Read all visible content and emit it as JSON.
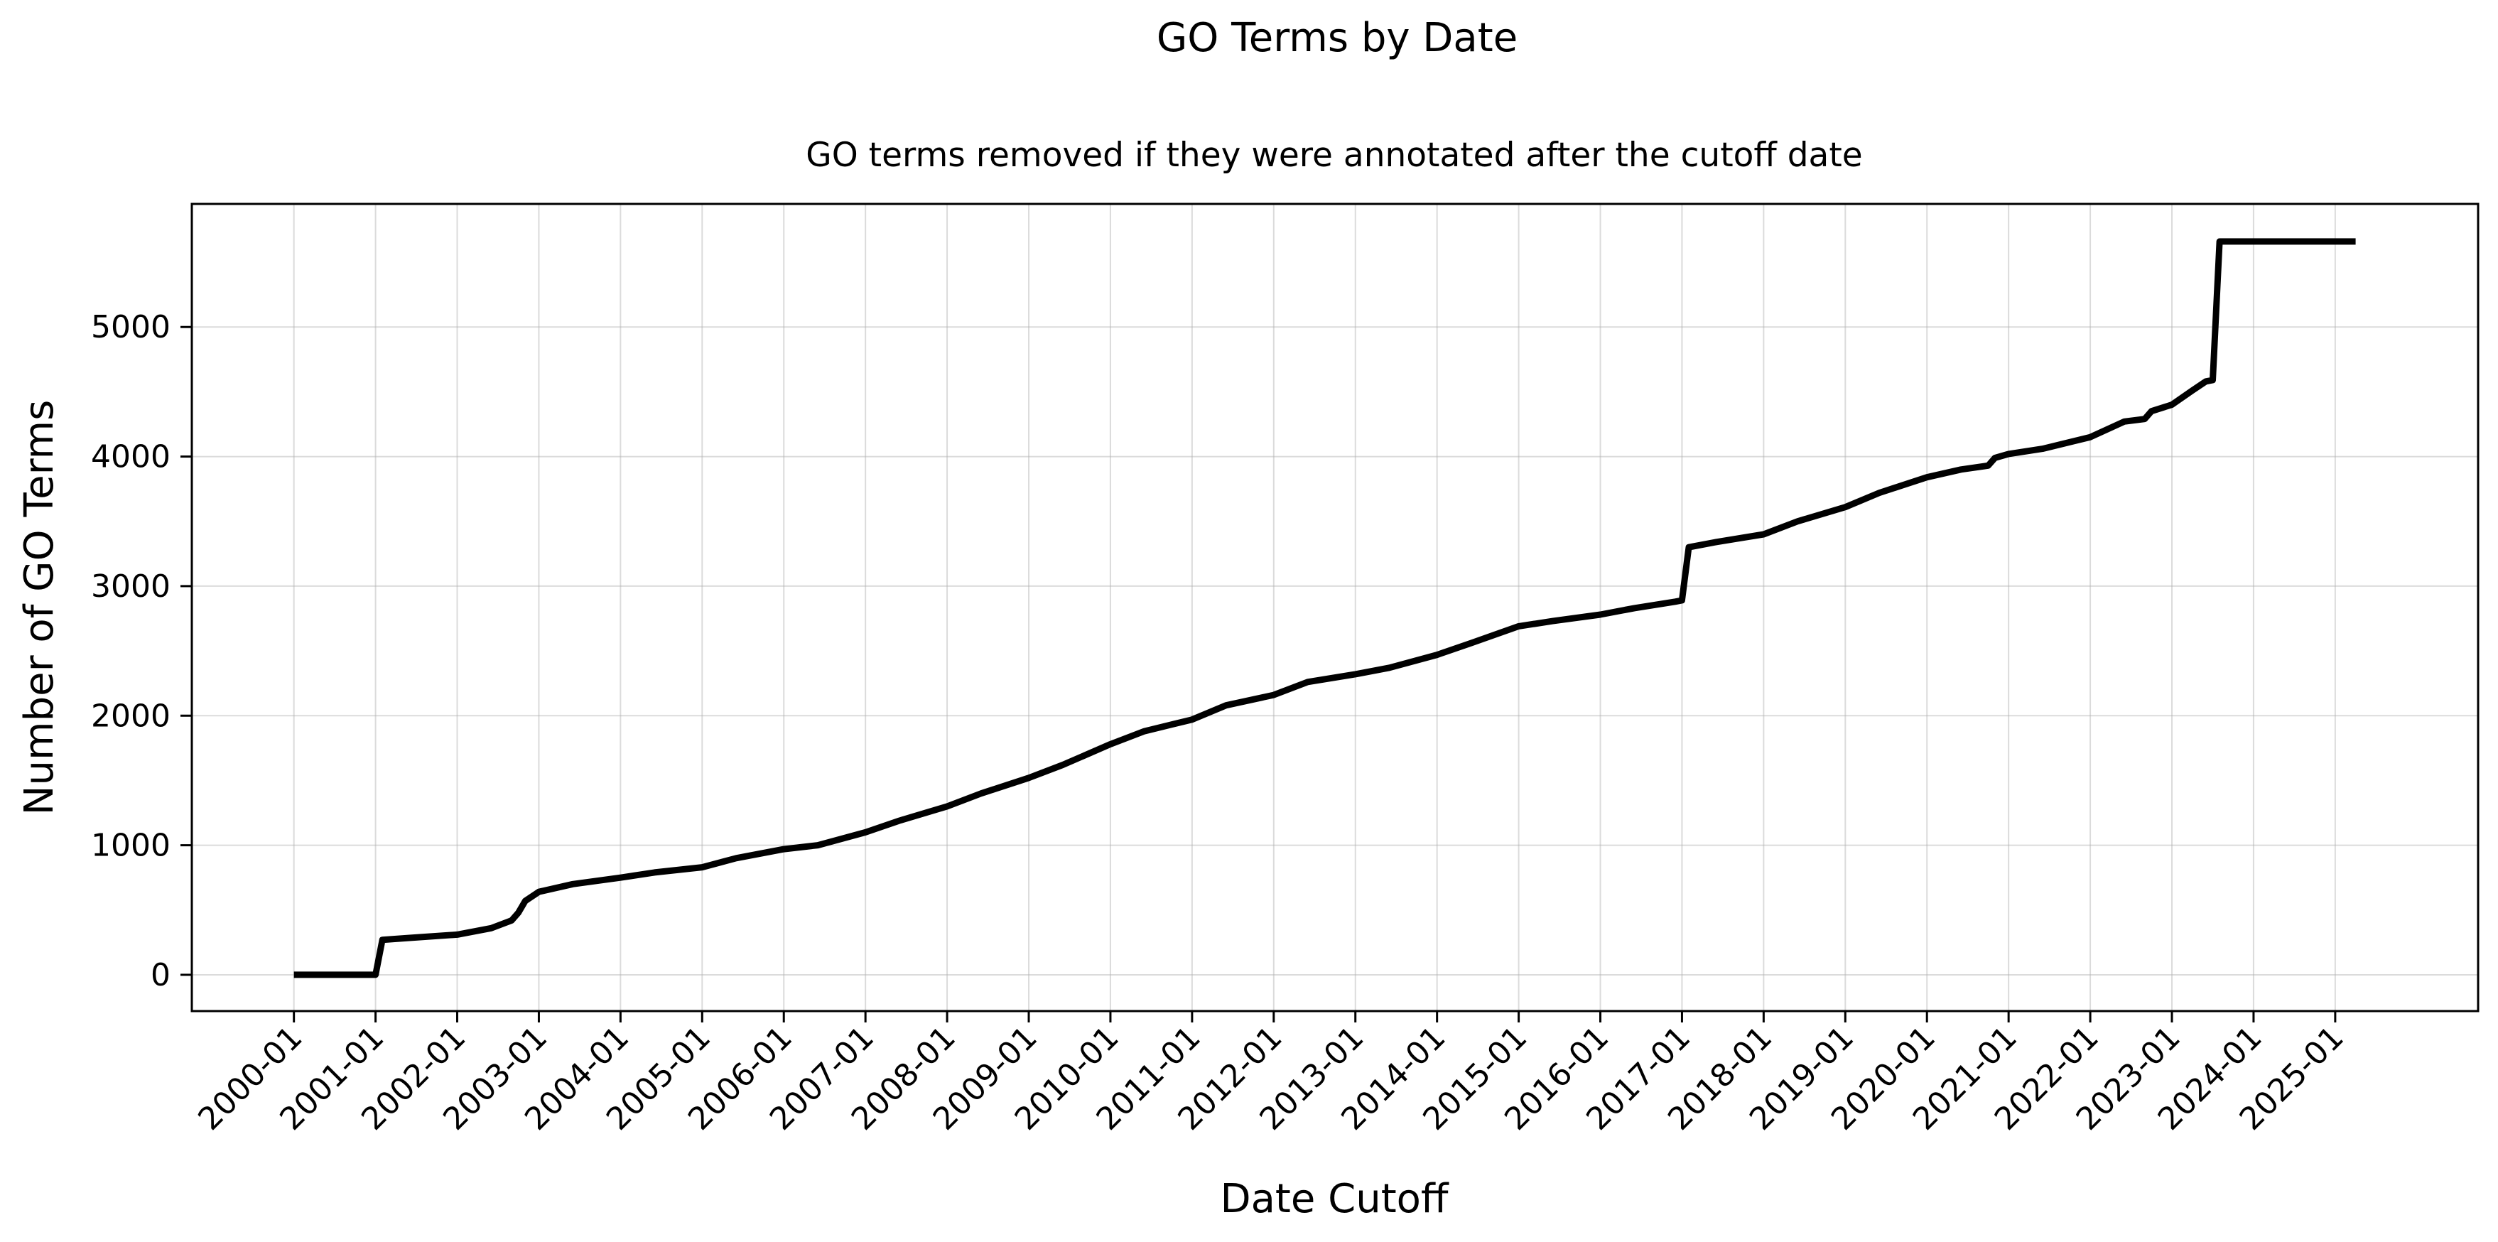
{
  "chart_data": {
    "type": "line",
    "title": "GO Terms by Date",
    "subtitle": "GO terms removed if they were annotated after the cutoff date",
    "xlabel": "Date Cutoff",
    "ylabel": "Number of GO Terms",
    "x_ticks": [
      "2000-01",
      "2001-01",
      "2002-01",
      "2003-01",
      "2004-01",
      "2005-01",
      "2006-01",
      "2007-01",
      "2008-01",
      "2009-01",
      "2010-01",
      "2011-01",
      "2012-01",
      "2013-01",
      "2014-01",
      "2015-01",
      "2016-01",
      "2017-01",
      "2018-01",
      "2019-01",
      "2020-01",
      "2021-01",
      "2022-01",
      "2023-01",
      "2024-01",
      "2025-01"
    ],
    "y_ticks": [
      "0",
      "1000",
      "2000",
      "3000",
      "4000",
      "5000"
    ],
    "xlim": [
      "1998-10",
      "2026-10"
    ],
    "ylim": [
      -280,
      5950
    ],
    "grid": true,
    "legend": "none",
    "color": "#000000",
    "series": [
      {
        "x": [
          "2000-01",
          "2000-07",
          "2001-01",
          "2001-02",
          "2001-06",
          "2002-01",
          "2002-06",
          "2002-09",
          "2002-10",
          "2002-11",
          "2003-01",
          "2003-06",
          "2004-01",
          "2004-06",
          "2005-01",
          "2005-06",
          "2006-01",
          "2006-06",
          "2007-01",
          "2007-06",
          "2008-01",
          "2008-06",
          "2009-01",
          "2009-06",
          "2010-01",
          "2010-06",
          "2011-01",
          "2011-06",
          "2012-01",
          "2012-06",
          "2013-01",
          "2013-06",
          "2014-01",
          "2014-06",
          "2015-01",
          "2015-06",
          "2016-01",
          "2016-06",
          "2016-12",
          "2017-01",
          "2017-02",
          "2017-06",
          "2018-01",
          "2018-06",
          "2019-01",
          "2019-06",
          "2020-01",
          "2020-06",
          "2020-10",
          "2020-11",
          "2021-01",
          "2021-06",
          "2022-01",
          "2022-06",
          "2022-09",
          "2022-10",
          "2023-01",
          "2023-04",
          "2023-06",
          "2023-07",
          "2023-08",
          "2023-12",
          "2024-06",
          "2025-01",
          "2025-04"
        ],
        "y": [
          0,
          0,
          0,
          270,
          285,
          310,
          360,
          420,
          480,
          570,
          640,
          700,
          750,
          790,
          830,
          900,
          970,
          1000,
          1100,
          1190,
          1300,
          1400,
          1520,
          1620,
          1780,
          1880,
          1970,
          2080,
          2160,
          2260,
          2320,
          2370,
          2470,
          2560,
          2690,
          2730,
          2780,
          2830,
          2880,
          2890,
          3300,
          3340,
          3400,
          3500,
          3610,
          3720,
          3840,
          3900,
          3930,
          3990,
          4020,
          4060,
          4150,
          4270,
          4290,
          4350,
          4400,
          4510,
          4580,
          4590,
          5660,
          5660,
          5660,
          5660,
          5660
        ]
      }
    ]
  }
}
